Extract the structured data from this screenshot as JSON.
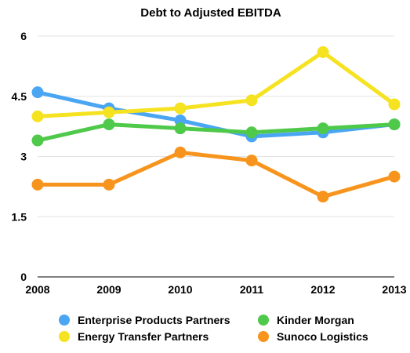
{
  "chart_data": {
    "type": "line",
    "title": "Debt to Adjusted EBITDA",
    "xlabel": "",
    "ylabel": "",
    "x": [
      "2008",
      "2009",
      "2010",
      "2011",
      "2012",
      "2013"
    ],
    "ylim": [
      0,
      6
    ],
    "yticks": [
      "0",
      "1.5",
      "3",
      "4.5",
      "6"
    ],
    "grid": true,
    "legend_position": "bottom",
    "series": [
      {
        "name": "Enterprise Products Partners",
        "color": "#4aa6f2",
        "values": [
          4.6,
          4.2,
          3.9,
          3.5,
          3.6,
          3.8
        ]
      },
      {
        "name": "Kinder Morgan",
        "color": "#4fc94a",
        "values": [
          3.4,
          3.8,
          3.7,
          3.6,
          3.7,
          3.8
        ]
      },
      {
        "name": "Energy Transfer Partners",
        "color": "#f5e220",
        "values": [
          4.0,
          4.1,
          4.2,
          4.4,
          5.6,
          4.3
        ]
      },
      {
        "name": "Sunoco Logistics",
        "color": "#f7941d",
        "values": [
          2.3,
          2.3,
          3.1,
          2.9,
          2.0,
          2.5
        ]
      }
    ]
  }
}
